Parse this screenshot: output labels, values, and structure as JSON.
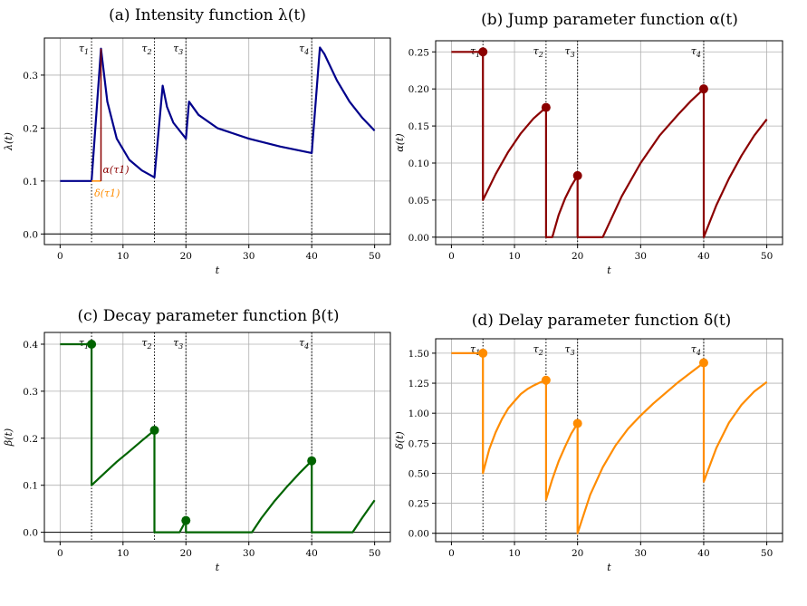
{
  "figure": {
    "caption": ""
  },
  "colors": {
    "intensity": "#00008b",
    "jump": "#8b0000",
    "decay": "#006400",
    "delay": "#ff8c00",
    "grid": "#b0b0b0"
  },
  "chart_data": [
    {
      "id": "a",
      "type": "line",
      "title": "(a) Intensity function λ(t)",
      "xlabel": "t",
      "ylabel": "λ(t)",
      "xlim": [
        -2.5,
        52.5
      ],
      "ylim": [
        -0.02,
        0.37
      ],
      "xticks": [
        0,
        10,
        20,
        30,
        40,
        50
      ],
      "yticks": [
        0.0,
        0.1,
        0.2,
        0.3
      ],
      "ytick_labels": [
        "0.0",
        "0.1",
        "0.2",
        "0.3"
      ],
      "grid": true,
      "events": [
        {
          "name": "τ1",
          "x": 5
        },
        {
          "name": "τ2",
          "x": 15
        },
        {
          "name": "τ3",
          "x": 20
        },
        {
          "name": "τ4",
          "x": 40
        }
      ],
      "annotations": [
        {
          "text": "α(τ1)",
          "color": "#8b0000"
        },
        {
          "text": "δ(τ1)",
          "color": "#ff8c00"
        }
      ],
      "series": [
        {
          "color": "#00008b",
          "points": [
            [
              0,
              0.1
            ],
            [
              5,
              0.1
            ],
            [
              6.5,
              0.35
            ],
            [
              7.5,
              0.25
            ],
            [
              9,
              0.18
            ],
            [
              11,
              0.14
            ],
            [
              13,
              0.12
            ],
            [
              15,
              0.107
            ],
            [
              16.3,
              0.28
            ],
            [
              17,
              0.24
            ],
            [
              18,
              0.21
            ],
            [
              20,
              0.18
            ],
            [
              20.5,
              0.25
            ],
            [
              22,
              0.225
            ],
            [
              25,
              0.2
            ],
            [
              30,
              0.18
            ],
            [
              35,
              0.165
            ],
            [
              40,
              0.153
            ],
            [
              41.3,
              0.352
            ],
            [
              42,
              0.34
            ],
            [
              44,
              0.29
            ],
            [
              46,
              0.25
            ],
            [
              48,
              0.22
            ],
            [
              50,
              0.195
            ]
          ]
        }
      ]
    },
    {
      "id": "b",
      "type": "line",
      "title": "(b) Jump parameter function α(t)",
      "xlabel": "t",
      "ylabel": "α(t)",
      "xlim": [
        -2.5,
        52.5
      ],
      "ylim": [
        -0.01,
        0.265
      ],
      "xticks": [
        0,
        10,
        20,
        30,
        40,
        50
      ],
      "yticks": [
        0.0,
        0.05,
        0.1,
        0.15,
        0.2,
        0.25
      ],
      "ytick_labels": [
        "0.00",
        "0.05",
        "0.10",
        "0.15",
        "0.20",
        "0.25"
      ],
      "grid": true,
      "events": [
        {
          "name": "τ1",
          "x": 5
        },
        {
          "name": "τ2",
          "x": 15
        },
        {
          "name": "τ3",
          "x": 20
        },
        {
          "name": "τ4",
          "x": 40
        }
      ],
      "markers": [
        [
          5,
          0.25
        ],
        [
          15,
          0.175
        ],
        [
          20,
          0.083
        ],
        [
          40,
          0.2
        ]
      ],
      "series": [
        {
          "color": "#8b0000",
          "points": [
            [
              0,
              0.25
            ],
            [
              5,
              0.25
            ],
            [
              5,
              0.05
            ],
            [
              7,
              0.085
            ],
            [
              9,
              0.115
            ],
            [
              11,
              0.14
            ],
            [
              13,
              0.16
            ],
            [
              15,
              0.175
            ],
            [
              15,
              0
            ],
            [
              16,
              0
            ],
            [
              17,
              0.03
            ],
            [
              18,
              0.052
            ],
            [
              19,
              0.069
            ],
            [
              20,
              0.083
            ],
            [
              20,
              0
            ],
            [
              24,
              0
            ],
            [
              27,
              0.055
            ],
            [
              30,
              0.1
            ],
            [
              33,
              0.137
            ],
            [
              36,
              0.166
            ],
            [
              38,
              0.184
            ],
            [
              40,
              0.2
            ],
            [
              40,
              0
            ],
            [
              42,
              0.043
            ],
            [
              44,
              0.079
            ],
            [
              46,
              0.11
            ],
            [
              48,
              0.137
            ],
            [
              50,
              0.159
            ]
          ]
        }
      ]
    },
    {
      "id": "c",
      "type": "line",
      "title": "(c) Decay parameter function β(t)",
      "xlabel": "t",
      "ylabel": "β(t)",
      "xlim": [
        -2.5,
        52.5
      ],
      "ylim": [
        -0.02,
        0.425
      ],
      "xticks": [
        0,
        10,
        20,
        30,
        40,
        50
      ],
      "yticks": [
        0.0,
        0.1,
        0.2,
        0.3,
        0.4
      ],
      "ytick_labels": [
        "0.0",
        "0.1",
        "0.2",
        "0.3",
        "0.4"
      ],
      "grid": true,
      "events": [
        {
          "name": "τ1",
          "x": 5
        },
        {
          "name": "τ2",
          "x": 15
        },
        {
          "name": "τ3",
          "x": 20
        },
        {
          "name": "τ4",
          "x": 40
        }
      ],
      "markers": [
        [
          5,
          0.4
        ],
        [
          15,
          0.217
        ],
        [
          20,
          0.025
        ],
        [
          40,
          0.152
        ]
      ],
      "series": [
        {
          "color": "#006400",
          "points": [
            [
              0,
              0.4
            ],
            [
              5,
              0.4
            ],
            [
              5,
              0.1
            ],
            [
              7,
              0.125
            ],
            [
              9,
              0.15
            ],
            [
              11,
              0.172
            ],
            [
              13,
              0.195
            ],
            [
              15,
              0.217
            ],
            [
              15,
              0
            ],
            [
              19,
              0
            ],
            [
              20,
              0.025
            ],
            [
              20,
              0
            ],
            [
              30.5,
              0
            ],
            [
              32,
              0.03
            ],
            [
              34,
              0.065
            ],
            [
              36,
              0.096
            ],
            [
              38,
              0.125
            ],
            [
              40,
              0.152
            ],
            [
              40,
              0
            ],
            [
              46.5,
              0
            ],
            [
              48,
              0.03
            ],
            [
              50,
              0.068
            ]
          ]
        }
      ]
    },
    {
      "id": "d",
      "type": "line",
      "title": "(d) Delay parameter function δ(t)",
      "xlabel": "t",
      "ylabel": "δ(t)",
      "xlim": [
        -2.5,
        52.5
      ],
      "ylim": [
        -0.07,
        1.62
      ],
      "xticks": [
        0,
        10,
        20,
        30,
        40,
        50
      ],
      "yticks": [
        0.0,
        0.25,
        0.5,
        0.75,
        1.0,
        1.25,
        1.5
      ],
      "ytick_labels": [
        "0.00",
        "0.25",
        "0.50",
        "0.75",
        "1.00",
        "1.25",
        "1.50"
      ],
      "grid": true,
      "events": [
        {
          "name": "τ1",
          "x": 5
        },
        {
          "name": "τ2",
          "x": 15
        },
        {
          "name": "τ3",
          "x": 20
        },
        {
          "name": "τ4",
          "x": 40
        }
      ],
      "markers": [
        [
          5,
          1.5
        ],
        [
          15,
          1.275
        ],
        [
          20,
          0.915
        ],
        [
          40,
          1.42
        ]
      ],
      "series": [
        {
          "color": "#ff8c00",
          "points": [
            [
              0,
              1.5
            ],
            [
              5,
              1.5
            ],
            [
              5,
              0.5
            ],
            [
              6,
              0.7
            ],
            [
              7,
              0.84
            ],
            [
              8,
              0.95
            ],
            [
              9,
              1.04
            ],
            [
              10,
              1.1
            ],
            [
              11,
              1.16
            ],
            [
              12,
              1.2
            ],
            [
              13,
              1.23
            ],
            [
              14,
              1.255
            ],
            [
              15,
              1.275
            ],
            [
              15,
              0.28
            ],
            [
              16,
              0.45
            ],
            [
              17,
              0.6
            ],
            [
              18,
              0.72
            ],
            [
              19,
              0.83
            ],
            [
              20,
              0.915
            ],
            [
              20,
              0
            ],
            [
              22,
              0.32
            ],
            [
              24,
              0.55
            ],
            [
              26,
              0.73
            ],
            [
              28,
              0.87
            ],
            [
              30,
              0.98
            ],
            [
              32,
              1.08
            ],
            [
              34,
              1.17
            ],
            [
              36,
              1.26
            ],
            [
              38,
              1.34
            ],
            [
              40,
              1.42
            ],
            [
              40,
              0.43
            ],
            [
              42,
              0.71
            ],
            [
              44,
              0.92
            ],
            [
              46,
              1.07
            ],
            [
              48,
              1.18
            ],
            [
              50,
              1.26
            ]
          ]
        }
      ]
    }
  ]
}
